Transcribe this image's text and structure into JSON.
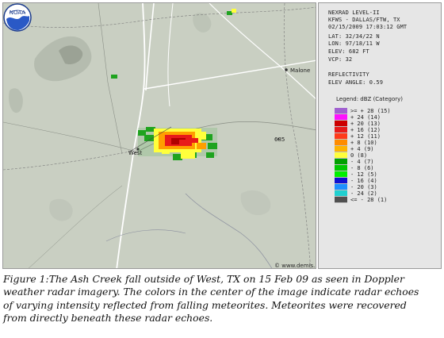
{
  "map": {
    "towns": {
      "malone": "Malone",
      "west": "West",
      "number_685": "685"
    },
    "copyright": "© www.demis.nl",
    "logo_text": "NOAA",
    "echo_colors": {
      "green": "#1fa31f",
      "yellow": "#ffff3c",
      "orange": "#ff9f00",
      "red": "#e81a1a",
      "darkred": "#b00000"
    }
  },
  "panel": {
    "info_lines": [
      "NEXRAD LEVEL-II",
      "KFWS - DALLAS/FTW, TX",
      "02/15/2009 17:03:12 GMT",
      "LAT: 32/34/22 N",
      "LON: 97/18/11 W",
      "ELEV: 682 FT",
      "VCP: 32",
      "REFLECTIVITY",
      "ELEV ANGLE: 0.59"
    ],
    "legend_title": "Legend: dBZ (Category)",
    "legend": [
      {
        "label": ">= + 28 (15)",
        "color": "#a060d0"
      },
      {
        "label": "+ 24 (14)",
        "color": "#ff10ff"
      },
      {
        "label": "+ 20 (13)",
        "color": "#cc0000"
      },
      {
        "label": "+ 16 (12)",
        "color": "#e81a1a"
      },
      {
        "label": "+ 12 (11)",
        "color": "#ff3a1a"
      },
      {
        "label": "+ 8 (10)",
        "color": "#ff8c00"
      },
      {
        "label": "+ 4 (9)",
        "color": "#ffb400"
      },
      {
        "label": "0 (8)",
        "color": "#ffff3c"
      },
      {
        "label": "- 4 (7)",
        "color": "#00a000"
      },
      {
        "label": "- 8 (6)",
        "color": "#00c800"
      },
      {
        "label": "- 12 (5)",
        "color": "#00f000"
      },
      {
        "label": "- 16 (4)",
        "color": "#1010d0"
      },
      {
        "label": "- 20 (3)",
        "color": "#1e90ff"
      },
      {
        "label": "- 24 (2)",
        "color": "#20d0d0"
      },
      {
        "label": "<= - 28 (1)",
        "color": "#505050"
      }
    ]
  },
  "caption": [
    "Figure 1:The Ash Creek fall outside of West, TX on 15 Feb 09 as seen in Doppler",
    "weather radar imagery. The colors in the center of the image indicate radar echoes",
    "of varying intensity reflected from falling meteorites. Meteorites were recovered",
    "from directly beneath these radar echoes."
  ]
}
